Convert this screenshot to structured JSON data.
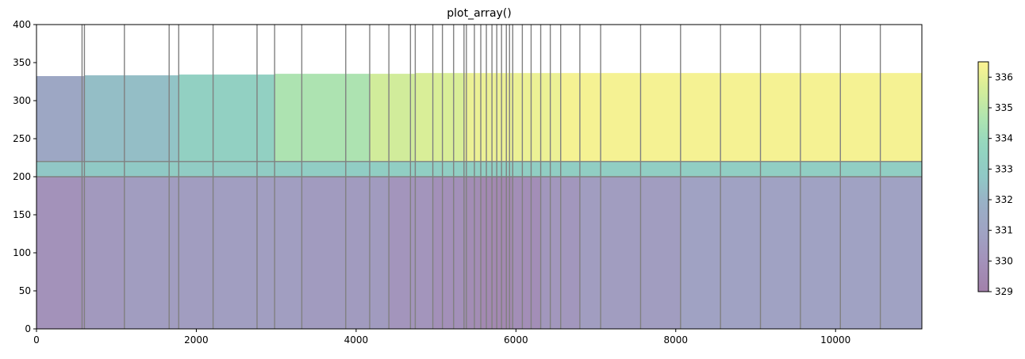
{
  "chart_data": {
    "type": "heatmap",
    "title": "plot_array()",
    "xlabel": "",
    "ylabel": "",
    "xlim": [
      0,
      11080
    ],
    "ylim": [
      0,
      400
    ],
    "xticks": [
      0,
      2000,
      4000,
      6000,
      8000,
      10000
    ],
    "yticks": [
      0,
      50,
      100,
      150,
      200,
      250,
      300,
      350,
      400
    ],
    "grid_lines_x": [
      570,
      600,
      1100,
      1660,
      1780,
      2210,
      2760,
      2980,
      3320,
      3870,
      4170,
      4410,
      4680,
      4740,
      4960,
      5080,
      5220,
      5350,
      5380,
      5480,
      5560,
      5630,
      5700,
      5760,
      5820,
      5880,
      5920,
      5960,
      6080,
      6190,
      6310,
      6430,
      6560,
      6800,
      7060,
      7560,
      8060,
      8560,
      9060,
      9560,
      10060,
      10560
    ],
    "grid_lines_y": [
      200,
      220
    ],
    "layers": [
      {
        "name": "layer-1",
        "columns": [
          {
            "x0": 0,
            "x1": 600,
            "top": 332,
            "value": 331.3
          },
          {
            "x0": 600,
            "x1": 1660,
            "top": 333,
            "value": 332.4
          },
          {
            "x0": 1660,
            "x1": 1780,
            "top": 333,
            "value": 332.6
          },
          {
            "x0": 1780,
            "x1": 2980,
            "top": 334,
            "value": 333.3
          },
          {
            "x0": 2980,
            "x1": 4170,
            "top": 335,
            "value": 334.6
          },
          {
            "x0": 4170,
            "x1": 4740,
            "top": 335,
            "value": 335.5
          },
          {
            "x0": 4740,
            "x1": 5350,
            "top": 336,
            "value": 335.7
          },
          {
            "x0": 5350,
            "x1": 6560,
            "top": 336,
            "value": 336.1
          },
          {
            "x0": 6560,
            "x1": 11080,
            "top": 336,
            "value": 336.3
          }
        ],
        "bottom": 220
      },
      {
        "name": "layer-2",
        "columns": [
          {
            "x0": 0,
            "x1": 600,
            "value": 332.7
          },
          {
            "x0": 600,
            "x1": 1660,
            "value": 332.8
          },
          {
            "x0": 1660,
            "x1": 2980,
            "value": 333.0
          },
          {
            "x0": 2980,
            "x1": 4170,
            "value": 333.1
          },
          {
            "x0": 4170,
            "x1": 11080,
            "value": 333.2
          }
        ],
        "top": 220,
        "bottom": 200
      },
      {
        "name": "layer-3",
        "columns": [
          {
            "x0": 0,
            "x1": 600,
            "value": 330.0
          },
          {
            "x0": 600,
            "x1": 1100,
            "value": 330.4
          },
          {
            "x0": 1100,
            "x1": 2210,
            "value": 330.6
          },
          {
            "x0": 2210,
            "x1": 3320,
            "value": 330.7
          },
          {
            "x0": 3320,
            "x1": 4410,
            "value": 330.5
          },
          {
            "x0": 4410,
            "x1": 4960,
            "value": 330.2
          },
          {
            "x0": 4960,
            "x1": 5350,
            "value": 329.9
          },
          {
            "x0": 5350,
            "x1": 5560,
            "value": 329.7
          },
          {
            "x0": 5560,
            "x1": 5960,
            "value": 329.5
          },
          {
            "x0": 5960,
            "x1": 6310,
            "value": 329.8
          },
          {
            "x0": 6310,
            "x1": 6800,
            "value": 330.3
          },
          {
            "x0": 6800,
            "x1": 8060,
            "value": 330.6
          },
          {
            "x0": 8060,
            "x1": 11080,
            "value": 330.9
          }
        ],
        "top": 200,
        "bottom": 0
      }
    ],
    "colorbar": {
      "min": 329,
      "max": 336.5,
      "ticks": [
        329,
        330,
        331,
        332,
        333,
        334,
        335,
        336
      ],
      "colormap": "viridis",
      "alpha": 0.5
    },
    "colors": {
      "grid": "#808080",
      "axis": "#000000"
    }
  }
}
